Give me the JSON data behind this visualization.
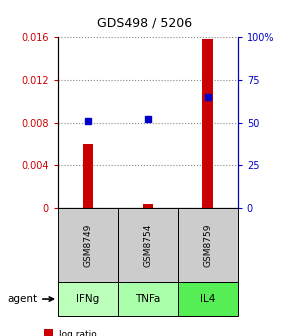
{
  "title": "GDS498 / 5206",
  "samples": [
    "GSM8749",
    "GSM8754",
    "GSM8759"
  ],
  "agents": [
    "IFNg",
    "TNFa",
    "IL4"
  ],
  "log_ratio": [
    0.006,
    0.0004,
    0.0158
  ],
  "percentile_rank_pct": [
    51,
    52,
    65
  ],
  "ylim_left": [
    0,
    0.016
  ],
  "ylim_right": [
    0,
    100
  ],
  "yticks_left": [
    0,
    0.004,
    0.008,
    0.012,
    0.016
  ],
  "yticks_right": [
    0,
    25,
    50,
    75,
    100
  ],
  "yticklabels_left": [
    "0",
    "0.004",
    "0.008",
    "0.012",
    "0.016"
  ],
  "yticklabels_right": [
    "0",
    "25",
    "50",
    "75",
    "100%"
  ],
  "bar_color": "#cc0000",
  "marker_color": "#0000cc",
  "agent_colors": [
    "#bbffbb",
    "#aaffaa",
    "#55ee55"
  ],
  "sample_bg": "#cccccc",
  "grid_color": "#888888",
  "left_axis_color": "#cc0000",
  "right_axis_color": "#0000cc",
  "bar_width": 0.18,
  "bg_color": "#ffffff"
}
